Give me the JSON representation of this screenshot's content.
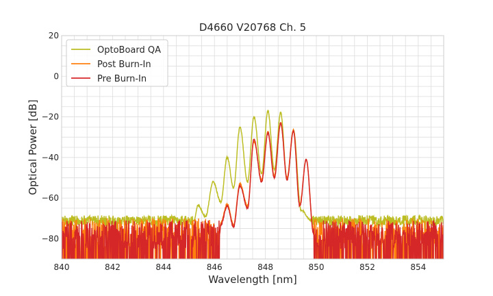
{
  "chart_data": {
    "type": "line",
    "title": "D4660 V20768 Ch. 5",
    "xlabel": "Wavelength [nm]",
    "ylabel": "Optical Power [dB]",
    "xlim": [
      840,
      855
    ],
    "ylim": [
      -90,
      20
    ],
    "xticks": [
      840,
      842,
      844,
      846,
      848,
      850,
      852,
      854
    ],
    "yticks": [
      20,
      0,
      -20,
      -40,
      -60,
      -80
    ],
    "xtick_labels": [
      "840",
      "842",
      "844",
      "846",
      "848",
      "850",
      "852",
      "854"
    ],
    "ytick_labels": [
      "20",
      "0",
      "−20",
      "−40",
      "−60",
      "−80"
    ],
    "grid": true,
    "legend_position": "top-left",
    "series": [
      {
        "name": "OptoBoard QA",
        "color": "#bcbd22",
        "noise_floor": -71,
        "noise_range_x": [
          840,
          845.2
        ],
        "noise_range_x2": [
          849.8,
          855
        ],
        "peaks": [
          {
            "x": 845.35,
            "y": -63.5
          },
          {
            "x": 845.95,
            "y": -52
          },
          {
            "x": 846.5,
            "y": -40
          },
          {
            "x": 847.0,
            "y": -25
          },
          {
            "x": 847.55,
            "y": -20
          },
          {
            "x": 848.1,
            "y": -17
          },
          {
            "x": 848.6,
            "y": -18
          },
          {
            "x": 849.1,
            "y": -26.5
          }
        ],
        "valleys": [
          {
            "x": 845.65,
            "y": -69
          },
          {
            "x": 846.25,
            "y": -62
          },
          {
            "x": 846.75,
            "y": -55
          },
          {
            "x": 847.3,
            "y": -52
          },
          {
            "x": 847.85,
            "y": -48
          },
          {
            "x": 848.35,
            "y": -46
          },
          {
            "x": 848.85,
            "y": -51
          },
          {
            "x": 849.4,
            "y": -66
          }
        ]
      },
      {
        "name": "Post Burn-In",
        "color": "#ff7f0e",
        "noise_floor": -77,
        "noise_range_x": [
          840,
          846.2
        ],
        "noise_range_x2": [
          849.9,
          855
        ],
        "peaks": [
          {
            "x": 846.5,
            "y": -63
          },
          {
            "x": 847.0,
            "y": -53
          },
          {
            "x": 847.55,
            "y": -32
          },
          {
            "x": 848.1,
            "y": -27.5
          },
          {
            "x": 848.6,
            "y": -23
          },
          {
            "x": 849.1,
            "y": -26.5
          },
          {
            "x": 849.6,
            "y": -41
          }
        ],
        "valleys": [
          {
            "x": 846.25,
            "y": -72
          },
          {
            "x": 846.75,
            "y": -73
          },
          {
            "x": 847.3,
            "y": -64
          },
          {
            "x": 847.85,
            "y": -51
          },
          {
            "x": 848.35,
            "y": -49
          },
          {
            "x": 848.85,
            "y": -50
          },
          {
            "x": 849.35,
            "y": -63
          }
        ]
      },
      {
        "name": "Pre Burn-In",
        "color": "#d62728",
        "noise_floor": -78,
        "noise_range_x": [
          840,
          846.2
        ],
        "noise_range_x2": [
          849.9,
          855
        ],
        "peaks": [
          {
            "x": 846.5,
            "y": -64
          },
          {
            "x": 847.0,
            "y": -54
          },
          {
            "x": 847.55,
            "y": -31
          },
          {
            "x": 848.1,
            "y": -28
          },
          {
            "x": 848.6,
            "y": -23
          },
          {
            "x": 849.1,
            "y": -27
          },
          {
            "x": 849.6,
            "y": -41
          }
        ],
        "valleys": [
          {
            "x": 846.25,
            "y": -73
          },
          {
            "x": 846.75,
            "y": -74
          },
          {
            "x": 847.3,
            "y": -65
          },
          {
            "x": 847.85,
            "y": -52
          },
          {
            "x": 848.35,
            "y": -50
          },
          {
            "x": 848.85,
            "y": -51
          },
          {
            "x": 849.35,
            "y": -64
          }
        ]
      }
    ]
  }
}
